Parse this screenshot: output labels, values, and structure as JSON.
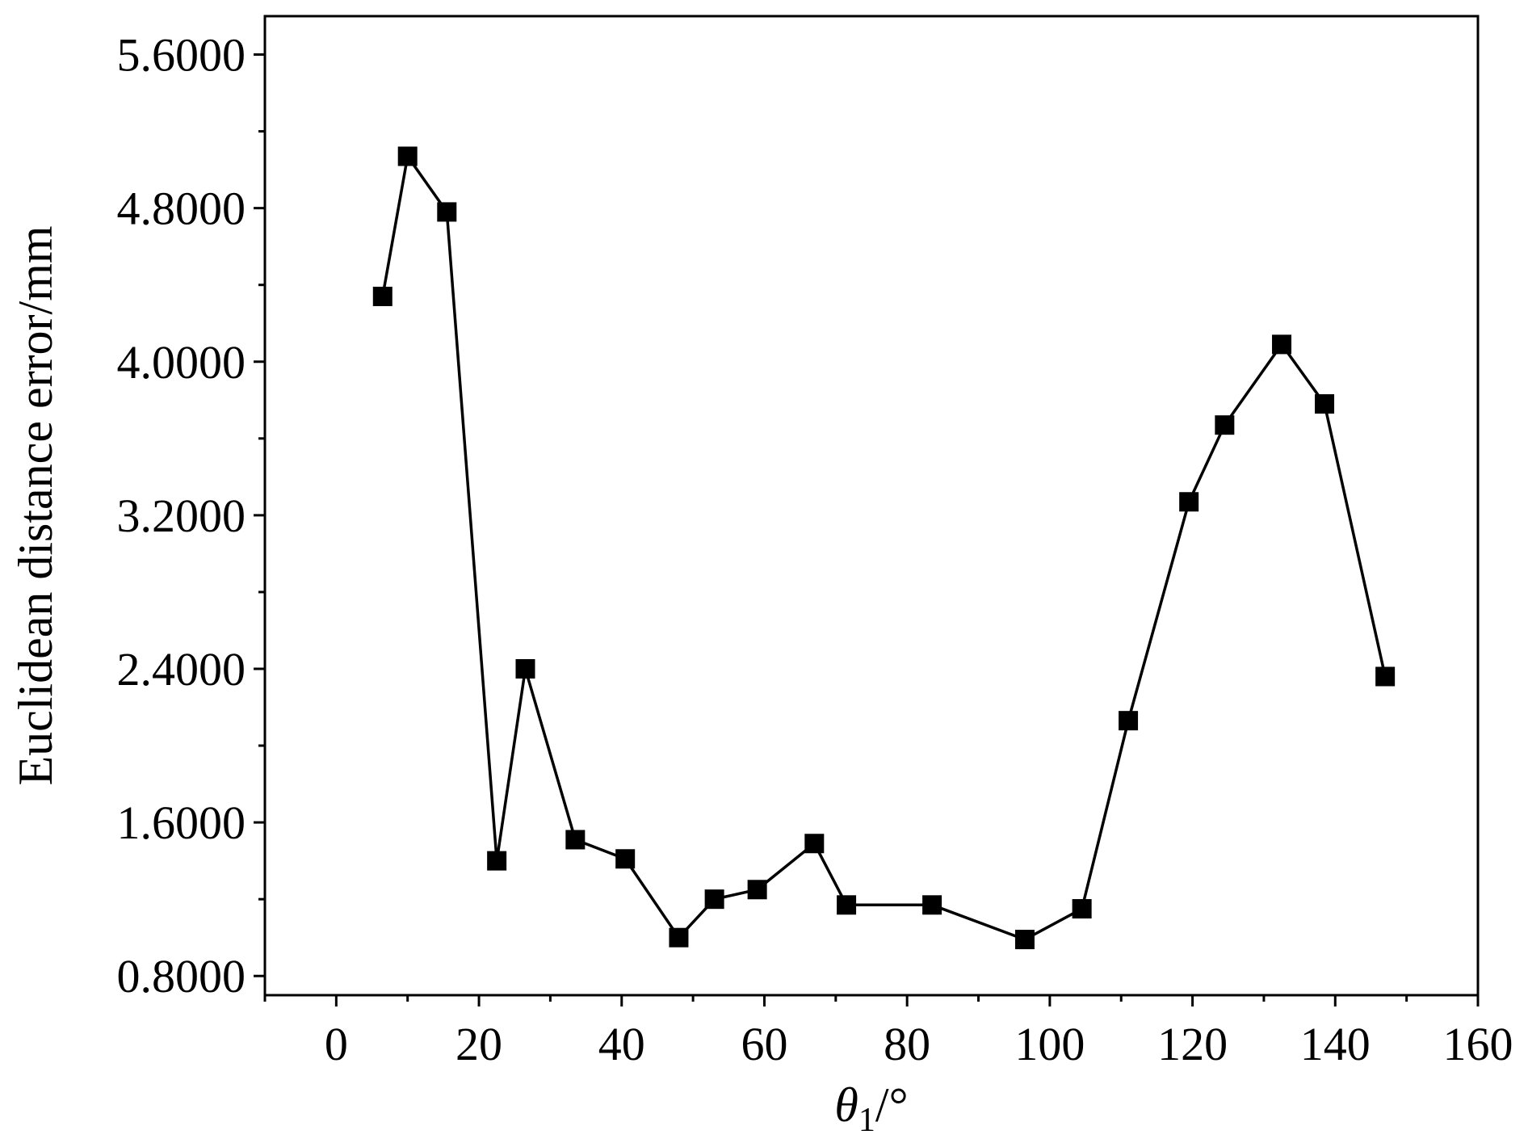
{
  "chart_data": {
    "type": "line",
    "title": "",
    "xlabel": "θ",
    "xlabel_subscript": "1",
    "xlabel_unit": "/°",
    "ylabel": "Euclidean distance error/mm",
    "xlim": [
      -10,
      160
    ],
    "ylim": [
      0.7,
      5.8
    ],
    "x_ticks": [
      0,
      20,
      40,
      60,
      80,
      100,
      120,
      140,
      160
    ],
    "x_tick_labels": [
      "0",
      "20",
      "40",
      "60",
      "80",
      "100",
      "120",
      "140",
      "160"
    ],
    "y_ticks": [
      0.8,
      1.6,
      2.4,
      3.2,
      4.0,
      4.8,
      5.6
    ],
    "y_tick_labels": [
      "0.8000",
      "1.6000",
      "2.4000",
      "3.2000",
      "4.0000",
      "4.8000",
      "5.6000"
    ],
    "grid": false,
    "series": [
      {
        "marker": "square",
        "color": "#000000",
        "x": [
          6.5,
          10,
          15.5,
          22.5,
          26.5,
          33.5,
          40.5,
          48,
          53,
          59,
          67,
          71.5,
          83.5,
          96.5,
          104.5,
          111,
          119.5,
          124.5,
          132.5,
          138.5,
          147
        ],
        "y": [
          4.34,
          5.07,
          4.78,
          1.4,
          2.4,
          1.51,
          1.41,
          1.0,
          1.2,
          1.25,
          1.49,
          1.17,
          1.17,
          0.99,
          1.15,
          2.13,
          3.27,
          3.67,
          4.09,
          3.78,
          2.36
        ]
      }
    ]
  }
}
